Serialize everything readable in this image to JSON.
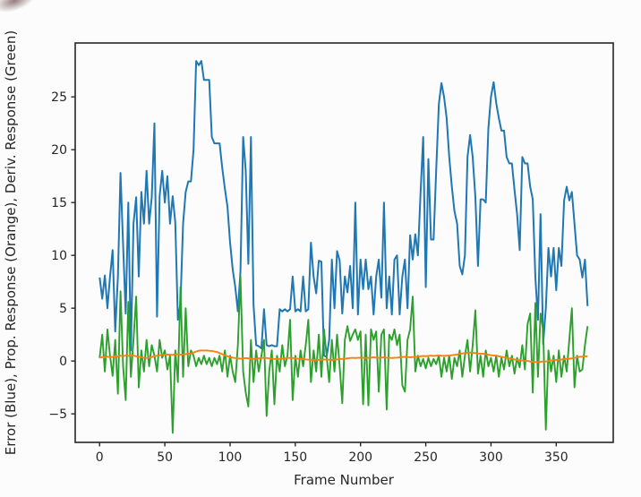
{
  "chart_data": {
    "type": "line",
    "title": "",
    "xlabel": "Frame Number",
    "ylabel": "Error (Blue), Prop. Response (Orange), Deriv. Response (Green)",
    "x_ticks": [
      0,
      50,
      100,
      150,
      200,
      250,
      300,
      350
    ],
    "y_ticks": [
      -5,
      0,
      5,
      10,
      15,
      20,
      25
    ],
    "xlim": [
      -18.7,
      393.7
    ],
    "ylim": [
      -7.7,
      30.1
    ],
    "grid": false,
    "legend_position": "none",
    "axis_color": "#262626",
    "x_start": 0,
    "x_step": 2,
    "draw_order": [
      0,
      2,
      1
    ],
    "series": [
      {
        "name": "Error",
        "color": "#1f77b4",
        "line_width": 2.0,
        "values": [
          7.9,
          5.9,
          8.1,
          5.0,
          8.0,
          10.5,
          2.8,
          8.0,
          17.8,
          11.0,
          4.5,
          15.0,
          1.0,
          13.0,
          15.5,
          8.0,
          16.0,
          13.0,
          18.0,
          13.0,
          15.5,
          22.5,
          4.2,
          15.6,
          18.0,
          15.0,
          17.5,
          13.0,
          15.6,
          13.1,
          3.9,
          5.5,
          13.0,
          16.0,
          17.0,
          17.0,
          20.0,
          28.4,
          28.0,
          28.4,
          26.6,
          26.6,
          26.6,
          21.2,
          20.6,
          20.6,
          20.6,
          18.3,
          16.3,
          14.6,
          11.2,
          8.7,
          7.0,
          4.7,
          8.5,
          21.2,
          18.0,
          9.2,
          21.2,
          5.3,
          1.5,
          1.4,
          1.2,
          4.9,
          1.5,
          1.4,
          1.5,
          1.4,
          1.4,
          4.9,
          4.7,
          4.9,
          4.7,
          4.9,
          8.0,
          4.7,
          4.9,
          4.7,
          8.0,
          4.7,
          4.9,
          11.2,
          8.0,
          6.4,
          9.5,
          9.4,
          0.5,
          0.4,
          2.0,
          9.6,
          5.0,
          10.4,
          9.5,
          4.5,
          8.0,
          6.5,
          9.0,
          5.0,
          15.0,
          4.4,
          9.6,
          6.8,
          9.6,
          6.8,
          8.0,
          4.4,
          8.0,
          9.6,
          6.0,
          15.0,
          5.0,
          8.0,
          4.4,
          9.6,
          10.0,
          4.4,
          8.0,
          9.6,
          5.0,
          11.9,
          9.6,
          12.0,
          10.0,
          16.0,
          21.2,
          7.0,
          19.1,
          11.5,
          11.5,
          18.0,
          24.3,
          26.3,
          25.0,
          23.0,
          19.3,
          16.5,
          14.2,
          13.0,
          9.0,
          8.2,
          10.0,
          19.3,
          21.4,
          19.3,
          15.5,
          9.0,
          15.3,
          15.3,
          15.0,
          22.0,
          25.0,
          26.4,
          24.4,
          23.0,
          21.8,
          21.8,
          19.3,
          18.7,
          18.7,
          16.2,
          13.9,
          10.5,
          19.3,
          18.7,
          18.7,
          16.5,
          15.3,
          7.9,
          3.9,
          13.9,
          1.6,
          5.0,
          10.7,
          8.0,
          10.7,
          6.7,
          10.7,
          9.0,
          15.2,
          16.5,
          15.2,
          16.0,
          13.0,
          10.0,
          9.6,
          7.9,
          9.6,
          5.2
        ]
      },
      {
        "name": "Prop. Response",
        "color": "#ff7f0e",
        "line_width": 1.9,
        "values": [
          0.3,
          0.38,
          0.33,
          0.42,
          0.36,
          0.4,
          0.45,
          0.42,
          0.5,
          0.45,
          0.52,
          0.48,
          0.55,
          0.5,
          0.45,
          0.4,
          0.35,
          0.3,
          0.28,
          0.32,
          0.38,
          0.45,
          0.5,
          0.55,
          0.58,
          0.6,
          0.62,
          0.6,
          0.58,
          0.62,
          0.65,
          0.6,
          0.62,
          0.65,
          0.68,
          0.72,
          0.8,
          0.9,
          0.97,
          1.0,
          0.98,
          1.0,
          0.97,
          0.95,
          0.9,
          0.85,
          0.75,
          0.65,
          0.55,
          0.45,
          0.38,
          0.32,
          0.28,
          0.25,
          0.22,
          0.25,
          0.28,
          0.25,
          0.22,
          0.2,
          0.22,
          0.25,
          0.28,
          0.3,
          0.28,
          0.25,
          0.22,
          0.2,
          0.18,
          0.2,
          0.22,
          0.25,
          0.28,
          0.3,
          0.28,
          0.25,
          0.22,
          0.2,
          0.18,
          0.15,
          0.13,
          0.12,
          0.1,
          0.12,
          0.1,
          0.12,
          0.15,
          0.13,
          0.12,
          0.1,
          0.12,
          0.15,
          0.18,
          0.2,
          0.22,
          0.25,
          0.28,
          0.3,
          0.28,
          0.3,
          0.32,
          0.3,
          0.28,
          0.3,
          0.32,
          0.35,
          0.32,
          0.3,
          0.32,
          0.35,
          0.32,
          0.3,
          0.28,
          0.3,
          0.32,
          0.35,
          0.38,
          0.4,
          0.38,
          0.35,
          0.38,
          0.4,
          0.42,
          0.45,
          0.48,
          0.45,
          0.48,
          0.5,
          0.48,
          0.5,
          0.52,
          0.5,
          0.48,
          0.5,
          0.52,
          0.55,
          0.58,
          0.62,
          0.68,
          0.72,
          0.75,
          0.78,
          0.8,
          0.78,
          0.75,
          0.72,
          0.7,
          0.68,
          0.65,
          0.6,
          0.55,
          0.52,
          0.5,
          0.45,
          0.4,
          0.35,
          0.3,
          0.25,
          0.2,
          0.15,
          0.1,
          0.08,
          0.05,
          0.02,
          0.0,
          -0.05,
          -0.08,
          -0.1,
          -0.1,
          -0.08,
          -0.05,
          -0.05,
          0.0,
          0.05,
          0.08,
          0.1,
          0.12,
          0.15,
          0.18,
          0.2,
          0.22,
          0.25,
          0.3,
          0.35,
          0.4,
          0.42,
          0.45,
          0.44
        ]
      },
      {
        "name": "Deriv. Response",
        "color": "#2ca02c",
        "line_width": 1.9,
        "values": [
          0.3,
          2.5,
          -1.0,
          3.0,
          0.5,
          -1.4,
          2.0,
          -3.1,
          6.6,
          -0.5,
          -3.7,
          5.6,
          -1.5,
          2.0,
          6.1,
          -2.5,
          1.0,
          -1.0,
          2.0,
          -0.5,
          1.5,
          0.5,
          -1.0,
          2.0,
          0.3,
          1.0,
          -0.8,
          0.5,
          -6.8,
          1.0,
          -2.0,
          7.0,
          -1.5,
          5.0,
          -0.5,
          1.0,
          0.5,
          -0.5,
          0.3,
          -0.3,
          0.5,
          -0.3,
          0.3,
          -0.5,
          0.3,
          -0.3,
          0.5,
          -1.0,
          1.0,
          -1.5,
          0.5,
          -1.0,
          -2.0,
          1.5,
          8.0,
          -1.0,
          -3.0,
          -4.3,
          2.0,
          -2.0,
          1.0,
          -1.0,
          0.5,
          2.0,
          -5.2,
          -1.0,
          1.0,
          -4.1,
          0.5,
          -1.0,
          1.5,
          -0.5,
          0.5,
          3.9,
          -3.7,
          0.5,
          -1.5,
          1.0,
          -0.5,
          1.5,
          3.9,
          -2.0,
          1.0,
          -1.0,
          2.5,
          -1.5,
          3.0,
          0.5,
          -2.0,
          2.0,
          -1.0,
          2.5,
          -0.5,
          -4.0,
          2.0,
          3.3,
          1.9,
          2.5,
          3.0,
          2.0,
          2.8,
          -4.1,
          2.5,
          -4.2,
          3.0,
          2.0,
          2.8,
          -2.9,
          2.5,
          3.0,
          -4.6,
          2.5,
          2.0,
          3.0,
          1.5,
          2.5,
          -2.3,
          -2.9,
          2.0,
          3.0,
          6.1,
          -1.0,
          0.5,
          -0.5,
          0.2,
          -0.7,
          0.3,
          -0.5,
          0.2,
          -0.3,
          0.5,
          -1.5,
          0.3,
          -1.0,
          0.5,
          -1.7,
          0.3,
          -0.5,
          1.0,
          -1.5,
          0.5,
          2.0,
          -1.0,
          1.5,
          4.8,
          -1.2,
          0.5,
          -1.5,
          1.0,
          -0.5,
          0.3,
          -1.0,
          0.5,
          -1.5,
          0.3,
          -0.8,
          1.0,
          -0.5,
          0.5,
          -1.2,
          0.3,
          -0.6,
          1.5,
          -0.8,
          3.5,
          4.5,
          -3.0,
          5.5,
          -1.5,
          4.5,
          3.0,
          -6.5,
          1.0,
          -1.0,
          0.5,
          -2.0,
          1.0,
          -1.5,
          0.5,
          -1.0,
          2.0,
          5.0,
          -2.5,
          0.5,
          -1.0,
          -0.8,
          1.5,
          3.3
        ]
      }
    ]
  }
}
